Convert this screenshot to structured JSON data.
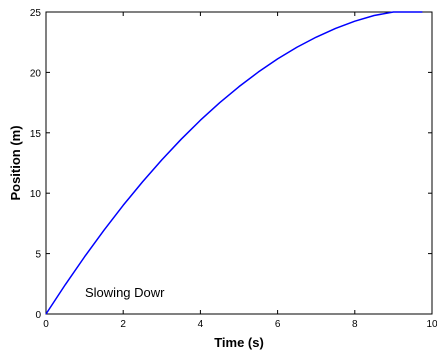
{
  "chart_data": {
    "type": "line",
    "title": "",
    "xlabel": "Time (s)",
    "ylabel": "Position (m)",
    "xlim": [
      0,
      10
    ],
    "ylim": [
      0,
      25
    ],
    "xticks": [
      0,
      2,
      4,
      6,
      8,
      10
    ],
    "yticks": [
      0,
      5,
      10,
      15,
      20,
      25
    ],
    "grid": false,
    "line_color": "#0000ff",
    "annotation": "Slowing Dowr",
    "series": [
      {
        "x": [
          0,
          0.5,
          1,
          1.5,
          2,
          2.5,
          3,
          3.5,
          4,
          4.5,
          5,
          5.5,
          6,
          6.5,
          7,
          7.5,
          8,
          8.5,
          9,
          9.5,
          9.75
        ],
        "values": [
          0,
          2.43,
          4.74,
          6.93,
          9.0,
          10.94,
          12.76,
          14.46,
          16.04,
          17.49,
          18.82,
          20.03,
          21.12,
          22.08,
          22.92,
          23.64,
          24.24,
          24.71,
          25.06,
          25.29,
          25.35
        ]
      }
    ]
  }
}
